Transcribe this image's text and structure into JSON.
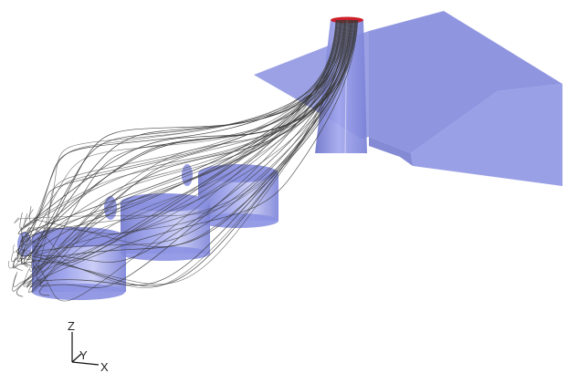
{
  "scene": {
    "geometry_color": "#7f86dc",
    "geometry_dark_color": "#6d74c8",
    "streamline_color": "#3a3a3a",
    "inlet_color": "#cc1f2a",
    "background": "#ffffff"
  },
  "axes": {
    "z_label": "Z",
    "y_label": "Y",
    "x_label": "X"
  }
}
